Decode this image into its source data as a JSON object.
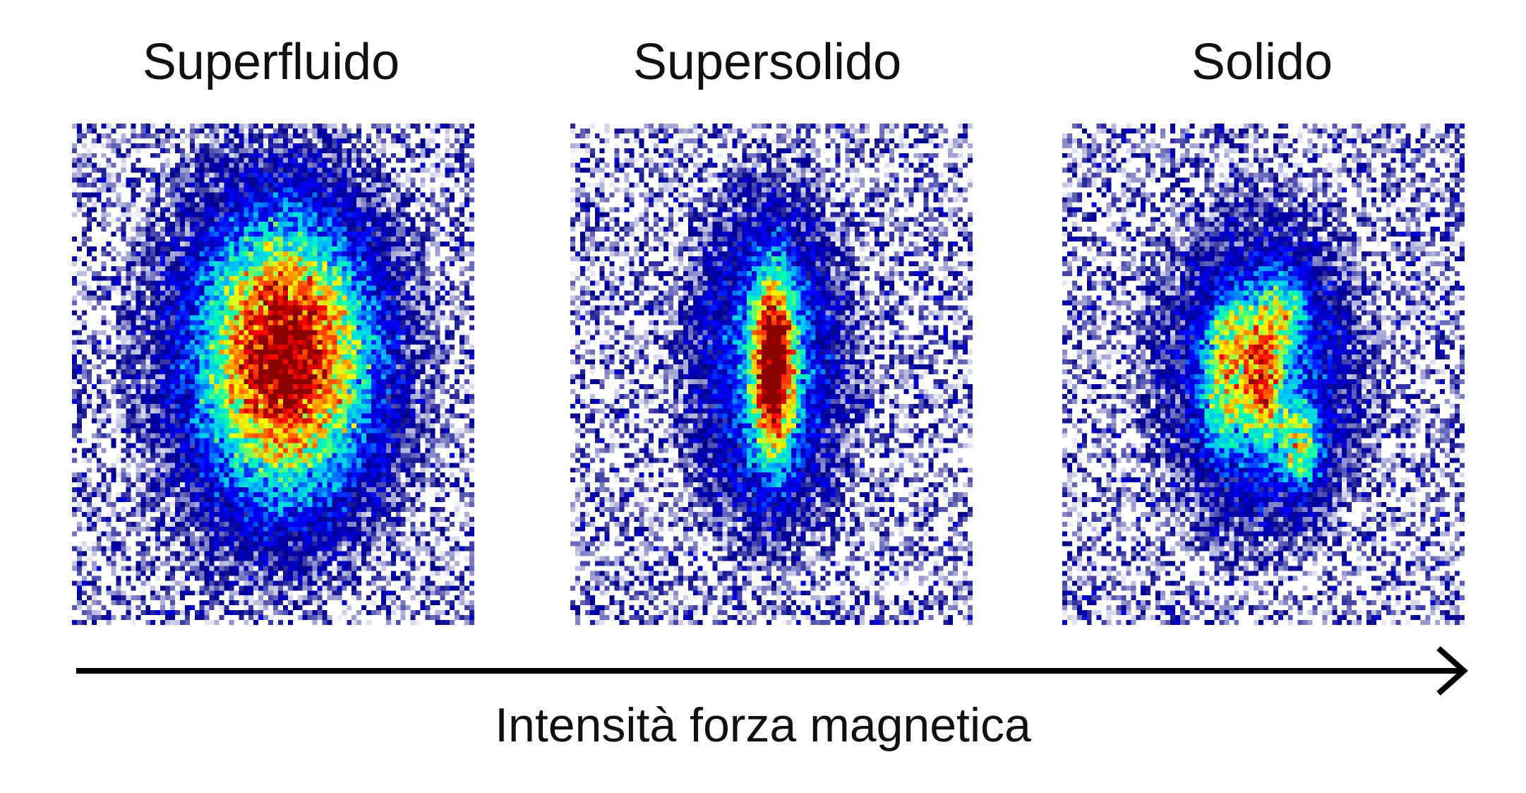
{
  "panels": [
    {
      "title": "Superfluido",
      "pattern": "single-blob"
    },
    {
      "title": "Supersolido",
      "pattern": "elongated-core-with-halo"
    },
    {
      "title": "Solido",
      "pattern": "multiple-droplets"
    }
  ],
  "axis": {
    "label": "Intensità forza magnetica",
    "direction": "left-to-right"
  },
  "colors": {
    "text": "#111111",
    "arrow": "#000000",
    "colormap": [
      "#ffffff",
      "#00008b",
      "#0000ff",
      "#00bfff",
      "#00ffb0",
      "#ffff00",
      "#ff8000",
      "#ff0000",
      "#8b0000"
    ]
  }
}
